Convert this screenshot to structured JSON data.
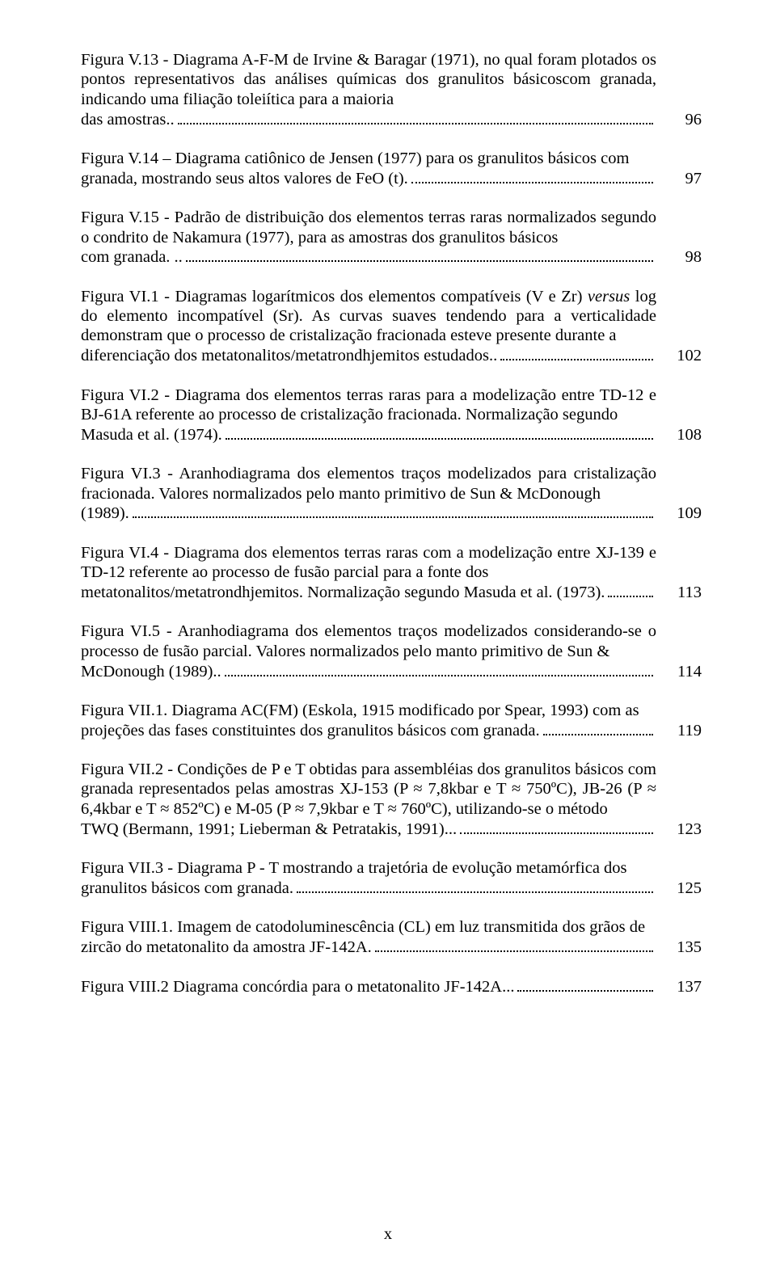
{
  "typography": {
    "font_family": "Times New Roman",
    "font_size_pt": 15.5,
    "line_height": 1.19,
    "text_color": "#000000",
    "background_color": "#ffffff",
    "dot_leader_color": "#000000"
  },
  "page_number": "x",
  "entries": [
    {
      "pre": "Figura V.13 - Diagrama A-F-M de Irvine & Baragar (1971), no qual foram plotados os pontos representativos das análises químicas dos granulitos básicoscom granada, indicando uma filiação toleiítica para a maioria",
      "last": "das amostras..",
      "page": "96"
    },
    {
      "pre": "Figura V.14 – Diagrama catiônico de Jensen (1977) para os granulitos básicos com",
      "last": "granada, mostrando seus altos valores de FeO (t).",
      "page": "97"
    },
    {
      "pre": "Figura V.15 - Padrão de distribuição dos elementos terras raras normalizados segundo o condrito de Nakamura (1977), para as amostras dos granulitos básicos",
      "last": "com granada. ..",
      "page": "98"
    },
    {
      "pre_html": "Figura VI.1 - Diagramas logarítmicos dos elementos compatíveis (V e Zr) <span class=\"italic\">versus</span> log do elemento incompatível (Sr). As curvas suaves tendendo para a verticalidade demonstram que o processo de cristalização fracionada esteve presente durante a",
      "last": "diferenciação dos metatonalitos/metatrondhjemitos estudados..",
      "page": "102"
    },
    {
      "pre": "Figura VI.2 - Diagrama dos elementos terras raras para a modelização entre TD-12 e BJ-61A referente ao processo de cristalização fracionada. Normalização segundo",
      "last": "Masuda et al. (1974).",
      "page": "108"
    },
    {
      "pre": "Figura VI.3 - Aranhodiagrama dos elementos traços modelizados para cristalização fracionada. Valores normalizados pelo manto primitivo de Sun & McDonough",
      "last": "(1989).",
      "page": "109"
    },
    {
      "pre": "Figura VI.4 - Diagrama dos elementos terras raras com a modelização entre XJ-139 e TD-12 referente ao processo de fusão parcial para a fonte dos",
      "last": "metatonalitos/metatrondhjemitos. Normalização segundo Masuda et al. (1973).",
      "page": "113"
    },
    {
      "pre": "Figura VI.5 - Aranhodiagrama dos elementos traços modelizados considerando-se o processo de fusão parcial. Valores normalizados pelo manto primitivo de Sun &",
      "last": "McDonough (1989)..",
      "page": "114"
    },
    {
      "pre": "Figura VII.1. Diagrama AC(FM) (Eskola, 1915 modificado por Spear, 1993) com as",
      "last": "projeções das fases constituintes dos granulitos básicos com granada.",
      "page": "119"
    },
    {
      "pre": "Figura VII.2 - Condições de P e T obtidas para assembléias dos granulitos básicos com granada representados pelas amostras XJ-153 (P ≈ 7,8kbar e T ≈ 750ºC), JB-26 (P ≈ 6,4kbar e T ≈ 852ºC) e M-05 (P ≈ 7,9kbar e T ≈ 760ºC), utilizando-se o método",
      "last": "TWQ (Bermann, 1991; Lieberman & Petratakis, 1991)...",
      "page": "123"
    },
    {
      "pre": "Figura VII.3 - Diagrama P - T mostrando a trajetória de evolução metamórfica dos",
      "last": "granulitos básicos com granada.",
      "page": "125"
    },
    {
      "pre": "Figura VIII.1. Imagem de catodoluminescência (CL) em luz transmitida dos grãos de",
      "last": "zircão do metatonalito da amostra JF-142A.",
      "page": "135"
    },
    {
      "pre": "",
      "last": "Figura VIII.2 Diagrama concórdia para o metatonalito JF-142A...",
      "page": "137"
    }
  ]
}
